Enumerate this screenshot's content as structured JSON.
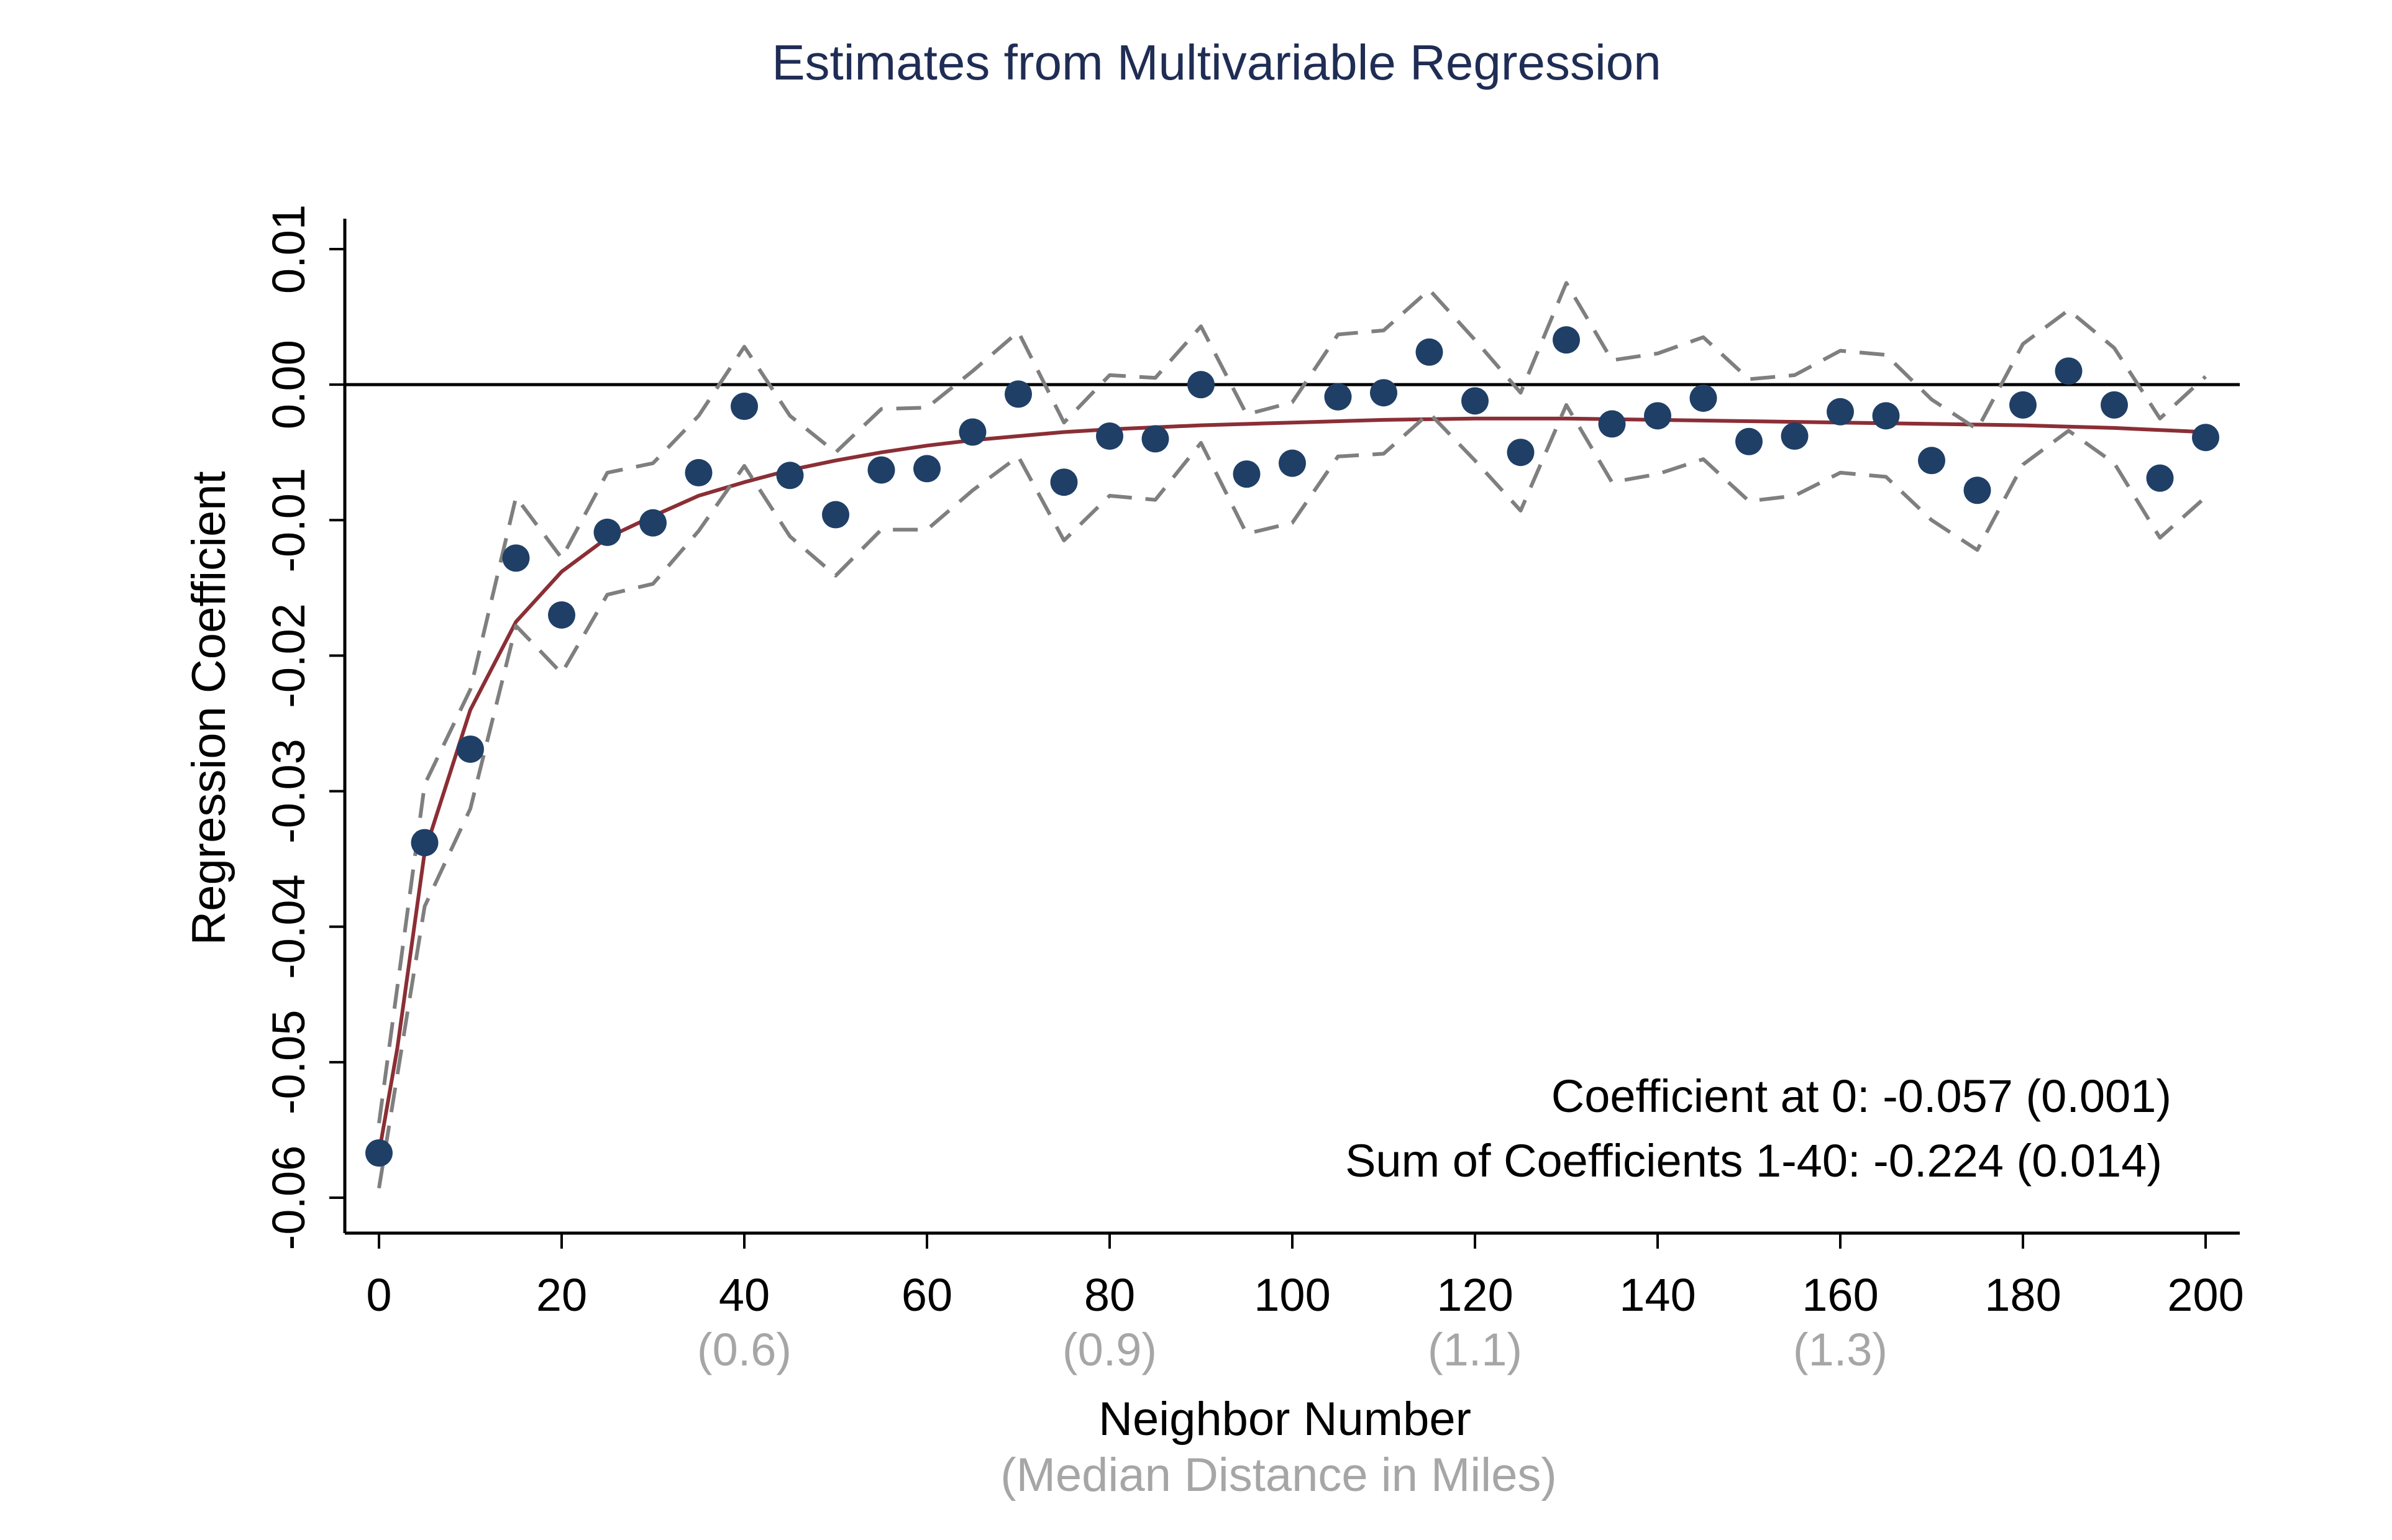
{
  "chart_data": {
    "type": "scatter",
    "title": "Estimates from Multivariable Regression",
    "xlabel": "Neighbor Number",
    "xlabel_sub": "(Median Distance in Miles)",
    "ylabel": "Regression Coefficient",
    "xlim": [
      0,
      200
    ],
    "ylim": [
      -0.06,
      0.01
    ],
    "x_ticks": [
      "0",
      "20",
      "40",
      "60",
      "80",
      "100",
      "120",
      "140",
      "160",
      "180",
      "200"
    ],
    "x_tick_values": [
      0,
      20,
      40,
      60,
      80,
      100,
      120,
      140,
      160,
      180,
      200
    ],
    "x_sub_ticks": [
      {
        "x": 40,
        "label": "(0.6)"
      },
      {
        "x": 80,
        "label": "(0.9)"
      },
      {
        "x": 120,
        "label": "(1.1)"
      },
      {
        "x": 160,
        "label": "(1.3)"
      }
    ],
    "y_ticks": [
      "-0.06",
      "-0.05",
      "-0.04",
      "-0.03",
      "-0.02",
      "-0.01",
      "0.00",
      "0.01"
    ],
    "y_tick_values": [
      -0.06,
      -0.05,
      -0.04,
      -0.03,
      -0.02,
      -0.01,
      0.0,
      0.01
    ],
    "reference_line": 0.0,
    "grid": false,
    "annotations": [
      "Coefficient at 0: -0.057 (0.001)",
      "Sum of Coefficients 1-40: -0.224 (0.014)"
    ],
    "colors": {
      "points": "#1f3f66",
      "fit": "#8b2e35",
      "ci": "#7f7f7f",
      "title": "#1f2d55",
      "sub_label": "#a6a6a6"
    },
    "series": [
      {
        "type": "scatter",
        "x": [
          0,
          5,
          10,
          15,
          20,
          25,
          30,
          35,
          40,
          45,
          50,
          55,
          60,
          65,
          70,
          75,
          80,
          85,
          90,
          95,
          100,
          105,
          110,
          115,
          120,
          125,
          130,
          135,
          140,
          145,
          150,
          155,
          160,
          165,
          170,
          175,
          180,
          185,
          190,
          195,
          200
        ],
        "y": [
          -0.0567,
          -0.0338,
          -0.0269,
          -0.0128,
          -0.017,
          -0.0109,
          -0.0102,
          -0.0065,
          -0.0016,
          -0.0067,
          -0.0096,
          -0.0063,
          -0.0062,
          -0.0035,
          -0.0007,
          -0.0072,
          -0.0038,
          -0.004,
          0.0,
          -0.0066,
          -0.0058,
          -0.0009,
          -0.0006,
          0.0024,
          -0.0012,
          -0.005,
          0.0033,
          -0.0029,
          -0.0023,
          -0.001,
          -0.0042,
          -0.0038,
          -0.002,
          -0.0023,
          -0.0056,
          -0.0078,
          -0.0015,
          0.001,
          -0.0015,
          -0.0069,
          -0.0039
        ]
      },
      {
        "type": "line",
        "x": [
          0,
          2,
          5,
          10,
          15,
          20,
          25,
          30,
          35,
          40,
          45,
          50,
          55,
          60,
          65,
          70,
          75,
          80,
          90,
          100,
          110,
          120,
          130,
          140,
          150,
          160,
          170,
          180,
          190,
          200
        ],
        "y": [
          -0.0567,
          -0.049,
          -0.0345,
          -0.024,
          -0.0175,
          -0.0138,
          -0.0113,
          -0.0097,
          -0.0082,
          -0.0072,
          -0.0063,
          -0.0056,
          -0.005,
          -0.0045,
          -0.0041,
          -0.0038,
          -0.0035,
          -0.0033,
          -0.003,
          -0.0028,
          -0.0026,
          -0.0025,
          -0.0025,
          -0.0026,
          -0.0027,
          -0.0028,
          -0.0029,
          -0.003,
          -0.0032,
          -0.0035
        ]
      },
      {
        "type": "line",
        "dash": true,
        "x": [
          0,
          5,
          10,
          15,
          20,
          25,
          30,
          35,
          40,
          45,
          50,
          55,
          60,
          65,
          70,
          75,
          80,
          85,
          90,
          95,
          100,
          105,
          110,
          115,
          120,
          125,
          130,
          135,
          140,
          145,
          150,
          155,
          160,
          165,
          170,
          175,
          180,
          185,
          190,
          195,
          200
        ],
        "y": [
          -0.0545,
          -0.0295,
          -0.0225,
          -0.0083,
          -0.0128,
          -0.0065,
          -0.0058,
          -0.0023,
          0.0028,
          -0.0023,
          -0.005,
          -0.0018,
          -0.0017,
          0.001,
          0.0039,
          -0.0028,
          0.0007,
          0.0005,
          0.0043,
          -0.0022,
          -0.0013,
          0.0037,
          0.004,
          0.007,
          0.0033,
          -0.0006,
          0.0075,
          0.0018,
          0.0023,
          0.0035,
          0.0004,
          0.0007,
          0.0025,
          0.0022,
          -0.0011,
          -0.0033,
          0.003,
          0.0055,
          0.0027,
          -0.0025,
          0.0006
        ]
      },
      {
        "type": "line",
        "dash": true,
        "x": [
          0,
          5,
          10,
          15,
          20,
          25,
          30,
          35,
          40,
          45,
          50,
          55,
          60,
          65,
          70,
          75,
          80,
          85,
          90,
          95,
          100,
          105,
          110,
          115,
          120,
          125,
          130,
          135,
          140,
          145,
          150,
          155,
          160,
          165,
          170,
          175,
          180,
          185,
          190,
          195,
          200
        ],
        "y": [
          -0.0593,
          -0.0385,
          -0.0313,
          -0.0178,
          -0.0213,
          -0.0155,
          -0.0147,
          -0.0108,
          -0.006,
          -0.0112,
          -0.0141,
          -0.0107,
          -0.0107,
          -0.0078,
          -0.0053,
          -0.0115,
          -0.0082,
          -0.0085,
          -0.0043,
          -0.011,
          -0.0102,
          -0.0053,
          -0.0051,
          -0.0021,
          -0.0056,
          -0.0093,
          -0.0015,
          -0.0072,
          -0.0066,
          -0.0055,
          -0.0086,
          -0.0082,
          -0.0065,
          -0.0068,
          -0.01,
          -0.0122,
          -0.0059,
          -0.0034,
          -0.0058,
          -0.0113,
          -0.0083
        ]
      }
    ]
  }
}
